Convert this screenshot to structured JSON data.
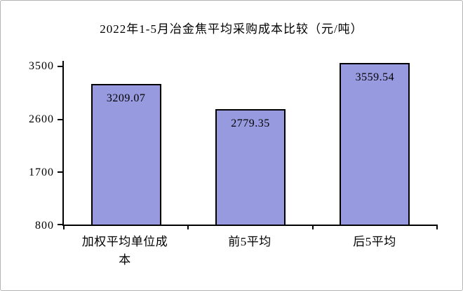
{
  "window": {
    "background": "#ffffff",
    "border_color": "#b3b3b3"
  },
  "chart_data": {
    "type": "bar",
    "title": "2022年1-5月冶金焦平均采购成本比较（元/吨）",
    "categories": [
      "加权平均单位成本",
      "前5平均",
      "后5平均"
    ],
    "values": [
      3209.07,
      2779.35,
      3559.54
    ],
    "value_labels": [
      "3209.07",
      "2779.35",
      "3559.54"
    ],
    "xlabel": "",
    "ylabel": "",
    "ylim": [
      800,
      3600
    ],
    "yticks": [
      800,
      1700,
      2600,
      3500
    ],
    "ytick_labels": [
      "800",
      "1700",
      "2600",
      "3500"
    ],
    "grid": false,
    "legend": "none",
    "bar_color": "#989ae0",
    "bar_border_color": "#000000",
    "axis_color": "#000000"
  }
}
